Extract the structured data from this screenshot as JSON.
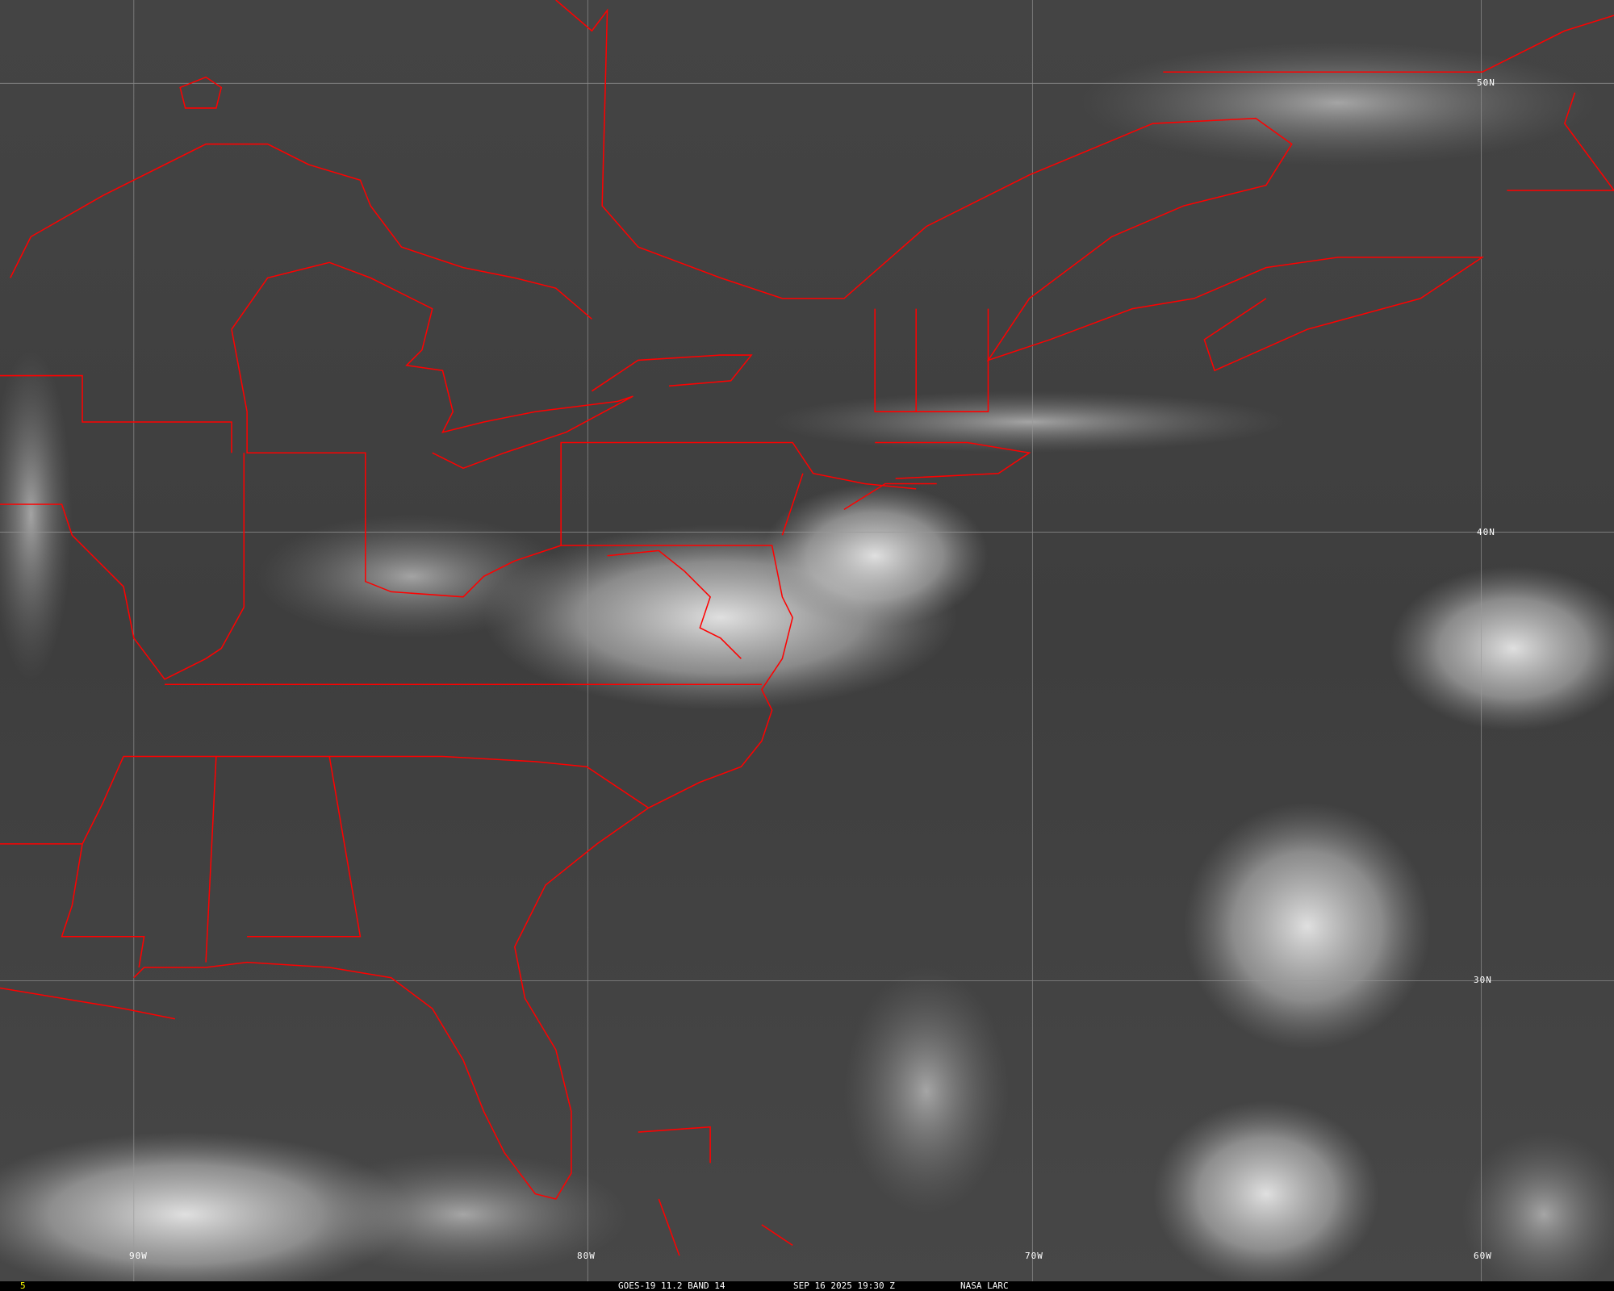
{
  "frame_number": "5",
  "caption": {
    "satellite": "GOES-19 11.2 BAND 14",
    "datetime": "SEP 16 2025 19:30 Z",
    "source": "NASA LARC"
  },
  "grid_labels": {
    "lat": [
      "50N",
      "40N",
      "30N"
    ],
    "lon": [
      "90W",
      "80W",
      "70W",
      "60W"
    ]
  },
  "colors": {
    "borders": "#ff0000",
    "frame_number": "#ffff00",
    "grid": "#9a9a9a"
  }
}
